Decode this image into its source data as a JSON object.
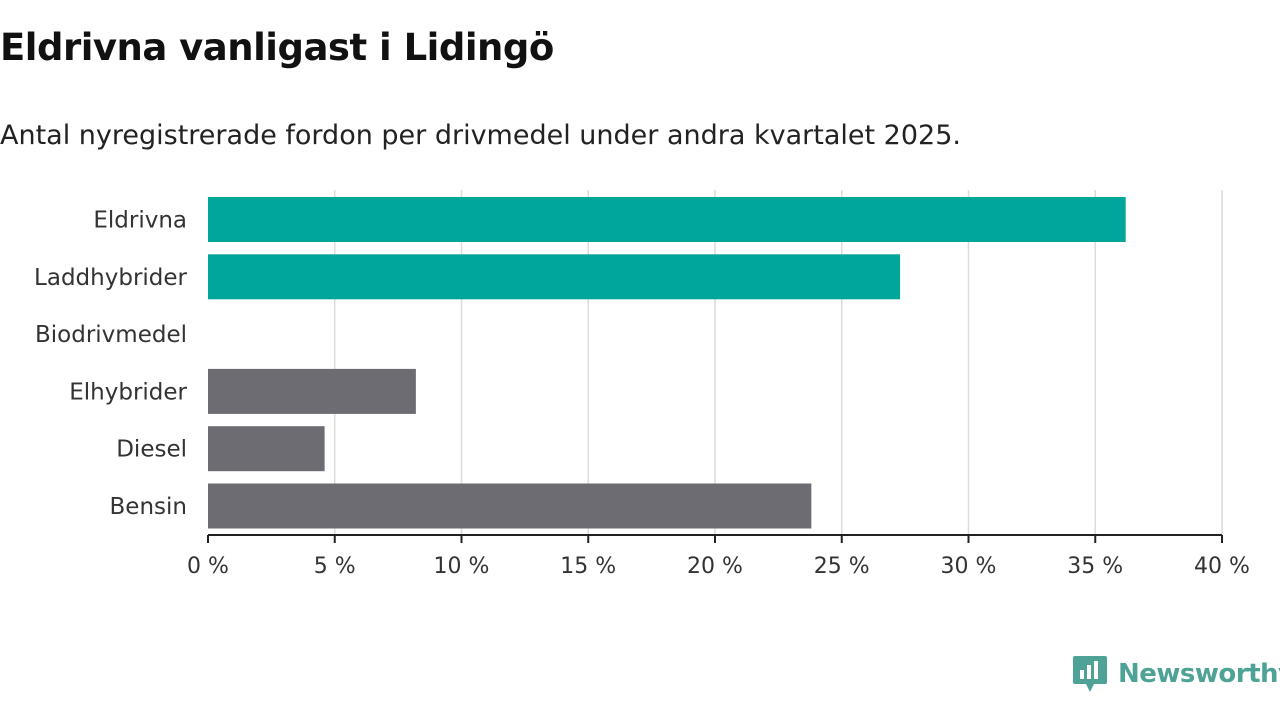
{
  "title": "Eldrivna vanligast i Lidingö",
  "subtitle": "Antal nyregistrerade fordon per drivmedel under andra kvartalet 2025.",
  "brand": {
    "name": "Newsworthy",
    "icon": "newsworthy-logo-icon",
    "color": "#4ea396"
  },
  "chart_data": {
    "type": "bar",
    "orientation": "horizontal",
    "categories": [
      "Eldrivna",
      "Laddhybrider",
      "Biodrivmedel",
      "Elhybrider",
      "Diesel",
      "Bensin"
    ],
    "values": [
      36.2,
      27.3,
      0,
      8.2,
      4.6,
      23.8
    ],
    "colors": [
      "#00a69a",
      "#00a69a",
      "#00a69a",
      "#6d6c72",
      "#6d6c72",
      "#6d6c72"
    ],
    "xlim": [
      0,
      40
    ],
    "xticks": [
      0,
      5,
      10,
      15,
      20,
      25,
      30,
      35,
      40
    ],
    "xtick_labels": [
      "0 %",
      "5 %",
      "10 %",
      "15 %",
      "20 %",
      "25 %",
      "30 %",
      "35 %",
      "40 %"
    ],
    "grid": "vertical",
    "xlabel": "",
    "ylabel": ""
  }
}
